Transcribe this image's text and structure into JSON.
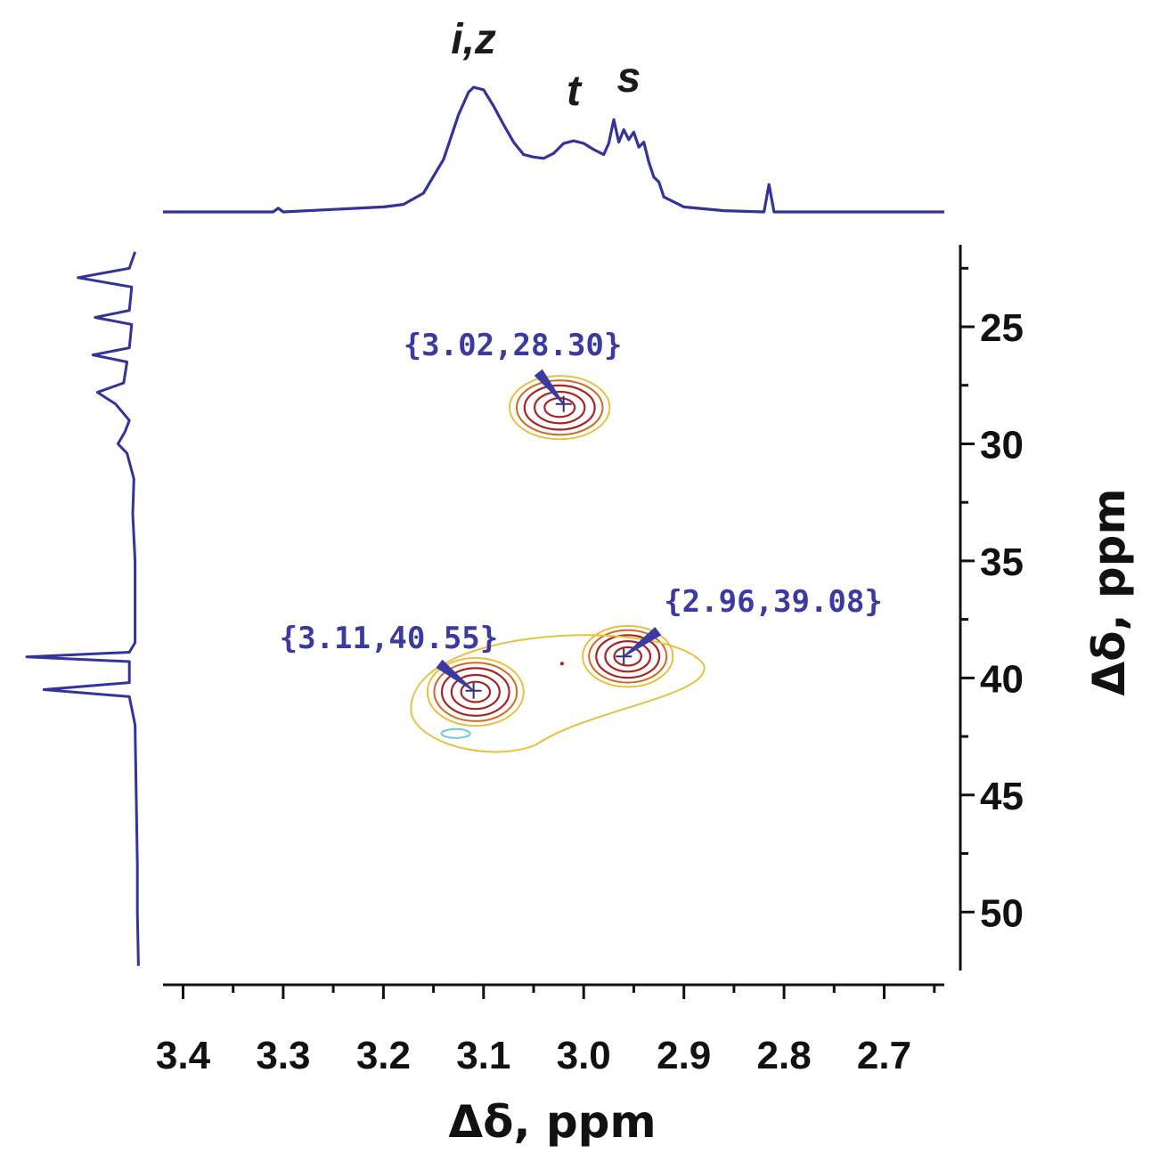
{
  "chart_data": {
    "type": "heatmap",
    "subtype": "2D NMR contour plot (HSQC-style) with 1D projections",
    "title": "",
    "xlabel": "Δδ, ppm",
    "ylabel": "Δδ, ppm",
    "x_axis": {
      "range": [
        3.42,
        2.64
      ],
      "reversed": true,
      "ticks": [
        3.4,
        3.3,
        3.2,
        3.1,
        3.0,
        2.9,
        2.8,
        2.7
      ],
      "tick_labels": [
        "3.4",
        "3.3",
        "3.2",
        "3.1",
        "3.0",
        "2.9",
        "2.8",
        "2.7"
      ],
      "position": "bottom"
    },
    "y_axis": {
      "range": [
        21.5,
        52.5
      ],
      "reversed": true,
      "ticks": [
        25,
        30,
        35,
        40,
        45,
        50
      ],
      "tick_labels": [
        "25",
        "30",
        "35",
        "40",
        "45",
        "50"
      ],
      "position": "right"
    },
    "grid": false,
    "legend": "none",
    "colors": {
      "projection": "#33339a",
      "contour_inner": "#a82424",
      "contour_mid": "#d2691e",
      "contour_outer": "#e8c040",
      "contour_negative": "#66ccdd",
      "annotation": "#3a3aa0"
    },
    "cross_peaks": [
      {
        "x": 3.02,
        "y": 28.3,
        "label": "{3.02,28.30}"
      },
      {
        "x": 3.11,
        "y": 40.55,
        "label": "{3.11,40.55}"
      },
      {
        "x": 2.96,
        "y": 39.08,
        "label": "{2.96,39.08}"
      }
    ],
    "top_projection": {
      "peak_labels": [
        {
          "text": "i,z",
          "x": 3.11
        },
        {
          "text": "t",
          "x": 3.01
        },
        {
          "text": "s",
          "x": 2.955
        }
      ],
      "points": [
        [
          3.42,
          0.0
        ],
        [
          3.35,
          0.0
        ],
        [
          3.31,
          0.0
        ],
        [
          3.305,
          0.03
        ],
        [
          3.3,
          0.0
        ],
        [
          3.25,
          0.02
        ],
        [
          3.2,
          0.04
        ],
        [
          3.18,
          0.06
        ],
        [
          3.16,
          0.15
        ],
        [
          3.14,
          0.42
        ],
        [
          3.125,
          0.78
        ],
        [
          3.115,
          0.96
        ],
        [
          3.11,
          1.0
        ],
        [
          3.1,
          0.98
        ],
        [
          3.09,
          0.85
        ],
        [
          3.08,
          0.7
        ],
        [
          3.07,
          0.56
        ],
        [
          3.06,
          0.46
        ],
        [
          3.05,
          0.44
        ],
        [
          3.04,
          0.43
        ],
        [
          3.03,
          0.47
        ],
        [
          3.02,
          0.55
        ],
        [
          3.01,
          0.57
        ],
        [
          3.0,
          0.55
        ],
        [
          2.99,
          0.5
        ],
        [
          2.98,
          0.46
        ],
        [
          2.975,
          0.55
        ],
        [
          2.97,
          0.74
        ],
        [
          2.965,
          0.56
        ],
        [
          2.96,
          0.66
        ],
        [
          2.955,
          0.58
        ],
        [
          2.95,
          0.64
        ],
        [
          2.945,
          0.52
        ],
        [
          2.94,
          0.56
        ],
        [
          2.935,
          0.4
        ],
        [
          2.93,
          0.28
        ],
        [
          2.925,
          0.24
        ],
        [
          2.92,
          0.12
        ],
        [
          2.9,
          0.04
        ],
        [
          2.86,
          0.01
        ],
        [
          2.82,
          0.0
        ],
        [
          2.815,
          0.22
        ],
        [
          2.81,
          0.0
        ],
        [
          2.78,
          0.0
        ],
        [
          2.64,
          0.0
        ]
      ]
    },
    "left_projection": {
      "points": [
        [
          21.8,
          0.05
        ],
        [
          22.5,
          0.1
        ],
        [
          22.9,
          0.55
        ],
        [
          23.3,
          0.08
        ],
        [
          24.3,
          0.1
        ],
        [
          24.6,
          0.4
        ],
        [
          24.9,
          0.08
        ],
        [
          25.9,
          0.1
        ],
        [
          26.2,
          0.42
        ],
        [
          26.5,
          0.12
        ],
        [
          27.4,
          0.15
        ],
        [
          27.8,
          0.38
        ],
        [
          28.3,
          0.22
        ],
        [
          29.0,
          0.1
        ],
        [
          29.5,
          0.14
        ],
        [
          30.0,
          0.2
        ],
        [
          30.4,
          0.12
        ],
        [
          31.5,
          0.06
        ],
        [
          33.0,
          0.07
        ],
        [
          35.0,
          0.05
        ],
        [
          37.0,
          0.05
        ],
        [
          38.5,
          0.05
        ],
        [
          38.9,
          0.1
        ],
        [
          39.1,
          1.0
        ],
        [
          39.3,
          0.1
        ],
        [
          40.2,
          0.1
        ],
        [
          40.5,
          0.85
        ],
        [
          40.8,
          0.1
        ],
        [
          42.0,
          0.05
        ],
        [
          45.0,
          0.04
        ],
        [
          48.0,
          0.03
        ],
        [
          50.0,
          0.03
        ],
        [
          52.3,
          0.02
        ]
      ]
    }
  }
}
